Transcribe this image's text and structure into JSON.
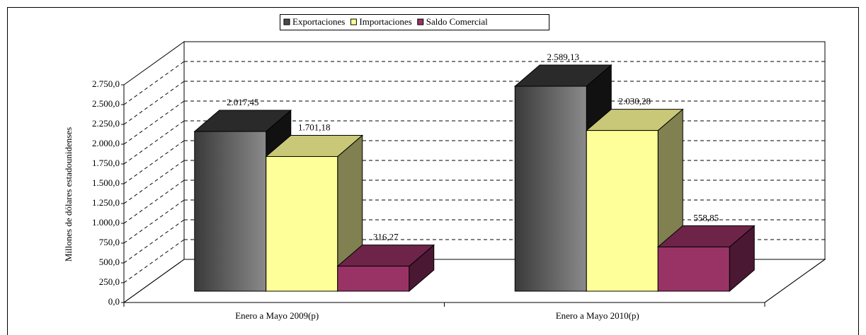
{
  "chart_data": {
    "type": "bar3d",
    "y_label": "Millones de dólares estadounidenses",
    "categories": [
      "Enero a Mayo 2009(p)",
      "Enero a Mayo 2010(p)"
    ],
    "series": [
      {
        "name": "Exportaciones",
        "color": "#5a5a5a",
        "values": [
          2017.45,
          2589.13
        ],
        "value_labels": [
          "2.017,45",
          "2.589,13"
        ]
      },
      {
        "name": "Importaciones",
        "color": "#ffff99",
        "values": [
          1701.18,
          2030.28
        ],
        "value_labels": [
          "1.701,18",
          "2.030,28"
        ]
      },
      {
        "name": "Saldo Comercial",
        "color": "#993366",
        "values": [
          316.27,
          558.85
        ],
        "value_labels": [
          "316,27",
          "558,85"
        ]
      }
    ],
    "ylim": [
      0,
      2750
    ],
    "yticks": [
      {
        "value": 0,
        "label": "0,0"
      },
      {
        "value": 250,
        "label": "250,0"
      },
      {
        "value": 500,
        "label": "500,0"
      },
      {
        "value": 750,
        "label": "750,0"
      },
      {
        "value": 1000,
        "label": "1.000,0"
      },
      {
        "value": 1250,
        "label": "1.250,0"
      },
      {
        "value": 1500,
        "label": "1.500,0"
      },
      {
        "value": 1750,
        "label": "1.750,0"
      },
      {
        "value": 2000,
        "label": "2.000,0"
      },
      {
        "value": 2250,
        "label": "2.250,0"
      },
      {
        "value": 2500,
        "label": "2.500,0"
      },
      {
        "value": 2750,
        "label": "2.750,0"
      }
    ],
    "grid": true,
    "legend": "top"
  }
}
